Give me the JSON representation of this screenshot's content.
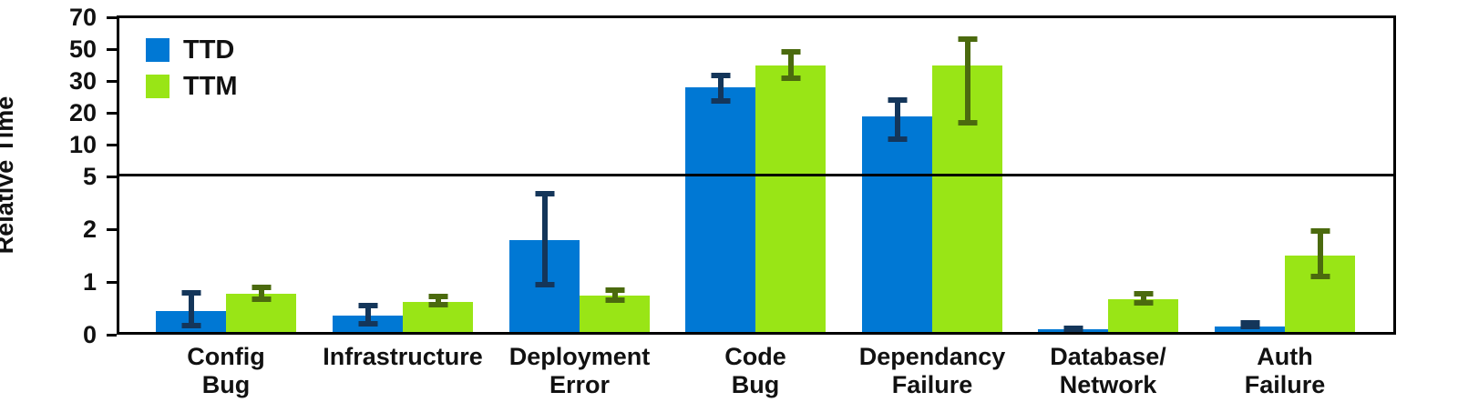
{
  "chart_data": {
    "type": "bar",
    "title": "",
    "ylabel": "Relative Time",
    "xlabel": "",
    "yticks": [
      0,
      1,
      2,
      5,
      10,
      20,
      30,
      50,
      70
    ],
    "ylim": [
      0,
      70
    ],
    "yscale": "piecewise (0-1-2-5 expanded, 5-10-20-30-50-70 compressed)",
    "grid": false,
    "reference_line_y": 5,
    "legend_position": "top-left-inside",
    "axis_color": "#000000",
    "text_color": "#111111",
    "background_color": "#ffffff",
    "categories": [
      [
        "Config",
        "Bug"
      ],
      [
        "Infrastructure"
      ],
      [
        "Deployment",
        "Error"
      ],
      [
        "Code",
        "Bug"
      ],
      [
        "Dependancy",
        "Failure"
      ],
      [
        "Database/",
        "Network"
      ],
      [
        "Auth",
        "Failure"
      ]
    ],
    "series": [
      {
        "name": "TTD",
        "color": "#0078d4",
        "error_bar_color": "#14365a",
        "values": [
          0.45,
          0.37,
          1.8,
          28,
          19,
          0.1,
          0.15
        ],
        "error_low": [
          0.12,
          0.15,
          0.9,
          23,
          11,
          0.07,
          0.1
        ],
        "error_high": [
          0.85,
          0.6,
          4.2,
          35,
          25,
          0.13,
          0.28
        ]
      },
      {
        "name": "TTM",
        "color": "#99e516",
        "error_bar_color": "#4b6a0e",
        "values": [
          0.77,
          0.63,
          0.74,
          40,
          40,
          0.68,
          1.5
        ],
        "error_low": [
          0.62,
          0.52,
          0.6,
          30,
          16,
          0.55,
          1.05
        ],
        "error_high": [
          0.95,
          0.77,
          0.9,
          50,
          58,
          0.83,
          2.05
        ]
      }
    ]
  }
}
